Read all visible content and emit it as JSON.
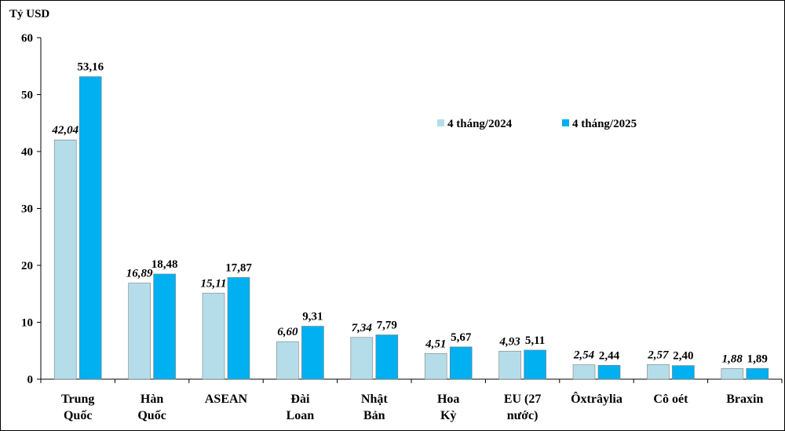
{
  "chart_data": {
    "type": "bar",
    "title": "",
    "ylabel": "Tỷ USD",
    "xlabel": "",
    "ylim": [
      0,
      60
    ],
    "yticks": [
      0,
      10,
      20,
      30,
      40,
      50,
      60
    ],
    "grid": false,
    "legend_position": "top-right",
    "categories": [
      [
        "Trung",
        "Quốc"
      ],
      [
        "Hàn",
        "Quốc"
      ],
      [
        "ASEAN"
      ],
      [
        "Đài",
        "Loan"
      ],
      [
        "Nhật",
        "Bản"
      ],
      [
        "Hoa",
        "Kỳ"
      ],
      [
        "EU (27",
        "nước)"
      ],
      [
        "Ôxtrâylia"
      ],
      [
        "Cô oét"
      ],
      [
        "Braxin"
      ]
    ],
    "series": [
      {
        "name": "4 tháng/2024",
        "color": "#B4DDE9",
        "label_style": "italic",
        "values": [
          42.04,
          16.89,
          15.11,
          6.6,
          7.34,
          4.51,
          4.93,
          2.54,
          2.57,
          1.88
        ],
        "labels": [
          "42,04",
          "16,89",
          "15,11",
          "6,60",
          "7,34",
          "4,51",
          "4,93",
          "2,54",
          "2,57",
          "1,88"
        ]
      },
      {
        "name": "4 tháng/2025",
        "color": "#00B0F0",
        "label_style": "normal",
        "values": [
          53.16,
          18.48,
          17.87,
          9.31,
          7.79,
          5.67,
          5.11,
          2.44,
          2.4,
          1.89
        ],
        "labels": [
          "53,16",
          "18,48",
          "17,87",
          "9,31",
          "7,79",
          "5,67",
          "5,11",
          "2,44",
          "2,40",
          "1,89"
        ]
      }
    ]
  }
}
